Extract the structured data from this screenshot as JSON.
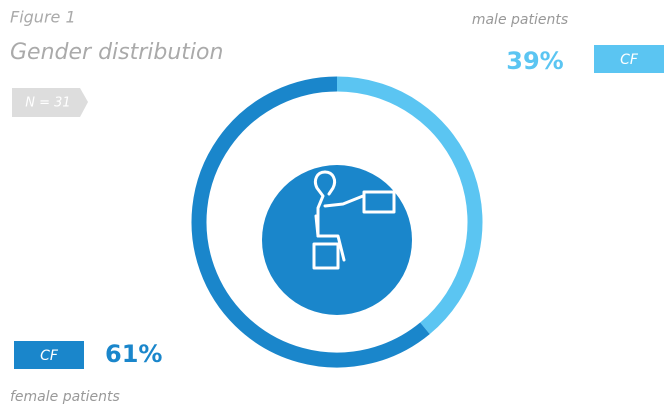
{
  "chart_data": {
    "type": "donut",
    "figure_label": "Figure 1",
    "title": "Gender distribution",
    "sample_size": "N = 31",
    "categories": [
      "male patients",
      "female patients"
    ],
    "values": [
      39,
      61
    ],
    "value_labels": [
      "39%",
      "61%"
    ],
    "tags": [
      "CF",
      "CF"
    ],
    "colors": [
      "#5bc5f2",
      "#1a86cb"
    ]
  }
}
